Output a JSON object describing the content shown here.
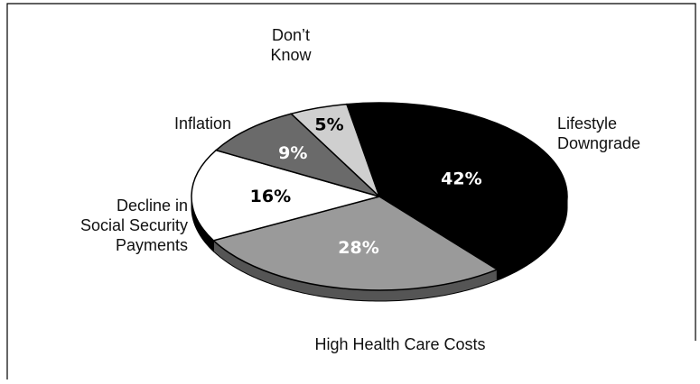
{
  "chart_data": {
    "type": "pie",
    "title": "",
    "slices": [
      {
        "label_lines": [
          "Lifestyle",
          "Downgrade"
        ],
        "value": 42,
        "value_label": "42%",
        "color": "#000000",
        "text_color": "#ffffff"
      },
      {
        "label_lines": [
          "High Health Care Costs"
        ],
        "value": 28,
        "value_label": "28%",
        "color": "#9a9a9a",
        "text_color": "#ffffff"
      },
      {
        "label_lines": [
          "Decline in",
          "Social Security",
          "Payments"
        ],
        "value": 16,
        "value_label": "16%",
        "color": "#ffffff",
        "text_color": "#000000"
      },
      {
        "label_lines": [
          "Inflation"
        ],
        "value": 9,
        "value_label": "9%",
        "color": "#6a6a6a",
        "text_color": "#ffffff"
      },
      {
        "label_lines": [
          "Don’t",
          "Know"
        ],
        "value": 5,
        "value_label": "5%",
        "color": "#cfcfcf",
        "text_color": "#000000"
      }
    ],
    "legend": "none"
  }
}
